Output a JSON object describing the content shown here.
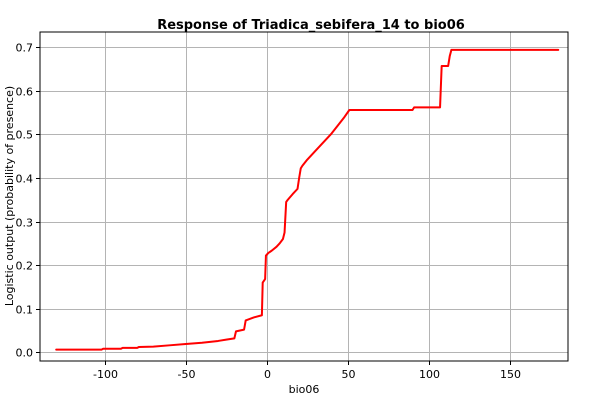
{
  "chart_data": {
    "type": "line",
    "title": "Response of Triadica_sebifera_14 to bio06",
    "xlabel": "bio06",
    "ylabel": "Logistic output (probability of presence)",
    "xlim": [
      -140,
      186
    ],
    "ylim": [
      -0.02,
      0.735
    ],
    "xticks": [
      -100,
      -50,
      0,
      50,
      100,
      150
    ],
    "yticks": [
      0.0,
      0.1,
      0.2,
      0.3,
      0.4,
      0.5,
      0.6,
      0.7
    ],
    "xtick_labels": [
      "-100",
      "-50",
      "0",
      "50",
      "100",
      "150"
    ],
    "ytick_labels": [
      "0.0",
      "0.1",
      "0.2",
      "0.3",
      "0.4",
      "0.5",
      "0.6",
      "0.7"
    ],
    "grid": true,
    "series": [
      {
        "color": "#ff0000",
        "x": [
          -130,
          -102,
          -101,
          -90,
          -89,
          -80,
          -79,
          -70,
          -60,
          -50,
          -40,
          -30,
          -25,
          -20,
          -19,
          -14,
          -13,
          -8,
          -3,
          -2.5,
          -1,
          -0.5,
          1,
          3,
          6,
          8,
          10,
          11,
          12,
          13,
          16,
          19,
          20,
          21,
          22,
          25,
          30,
          40,
          48,
          51,
          55,
          70,
          90,
          91,
          95,
          107,
          108,
          112,
          113,
          114,
          180
        ],
        "values": [
          0.006,
          0.006,
          0.008,
          0.008,
          0.01,
          0.01,
          0.012,
          0.013,
          0.016,
          0.019,
          0.022,
          0.026,
          0.029,
          0.032,
          0.048,
          0.052,
          0.073,
          0.08,
          0.085,
          0.16,
          0.168,
          0.222,
          0.228,
          0.233,
          0.242,
          0.25,
          0.26,
          0.275,
          0.345,
          0.35,
          0.363,
          0.375,
          0.4,
          0.422,
          0.428,
          0.442,
          0.462,
          0.502,
          0.54,
          0.556,
          0.556,
          0.556,
          0.556,
          0.562,
          0.562,
          0.562,
          0.657,
          0.657,
          0.68,
          0.694,
          0.694
        ]
      }
    ]
  }
}
